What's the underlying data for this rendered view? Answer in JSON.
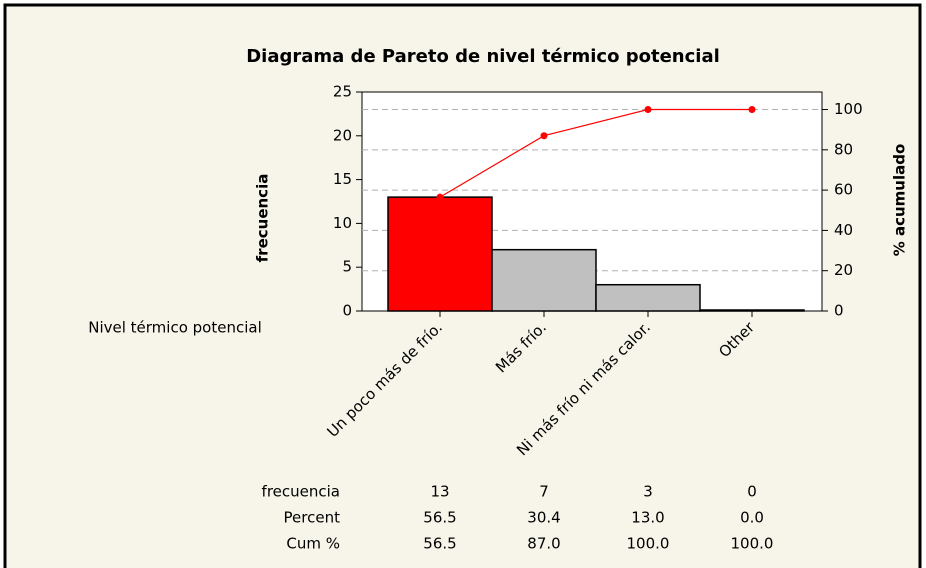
{
  "chart_data": {
    "type": "pareto",
    "title": "Diagrama de Pareto de nivel térmico potencial",
    "xlabel": "Nivel térmico potencial",
    "ylabel": "frecuencia",
    "y2label": "% acumulado",
    "categories": [
      "Un poco más de frío.",
      "Más frío.",
      "Ni más frío ni más calor.",
      "Other"
    ],
    "series": [
      {
        "name": "frecuencia",
        "style": "bar",
        "colors": [
          "#ff0000",
          "#c0c0c0",
          "#c0c0c0",
          "#c0c0c0"
        ],
        "values": [
          13,
          7,
          3,
          0
        ]
      },
      {
        "name": "Percent",
        "style": "table",
        "values": [
          56.5,
          30.4,
          13.0,
          0.0
        ],
        "value_labels": [
          "56.5",
          "30.4",
          "13.0",
          "0.0"
        ]
      },
      {
        "name": "Cum %",
        "style": "line",
        "axis": "y2",
        "color": "#ff0000",
        "values": [
          56.5,
          87.0,
          100.0,
          100.0
        ],
        "value_labels": [
          "56.5",
          "87.0",
          "100.0",
          "100.0"
        ]
      }
    ],
    "ylim": [
      0,
      25
    ],
    "yticks": [
      0,
      5,
      10,
      15,
      20,
      25
    ],
    "y2lim": [
      0,
      108.7
    ],
    "y2ticks": [
      0,
      20,
      40,
      60,
      80,
      100
    ],
    "grid": true
  }
}
